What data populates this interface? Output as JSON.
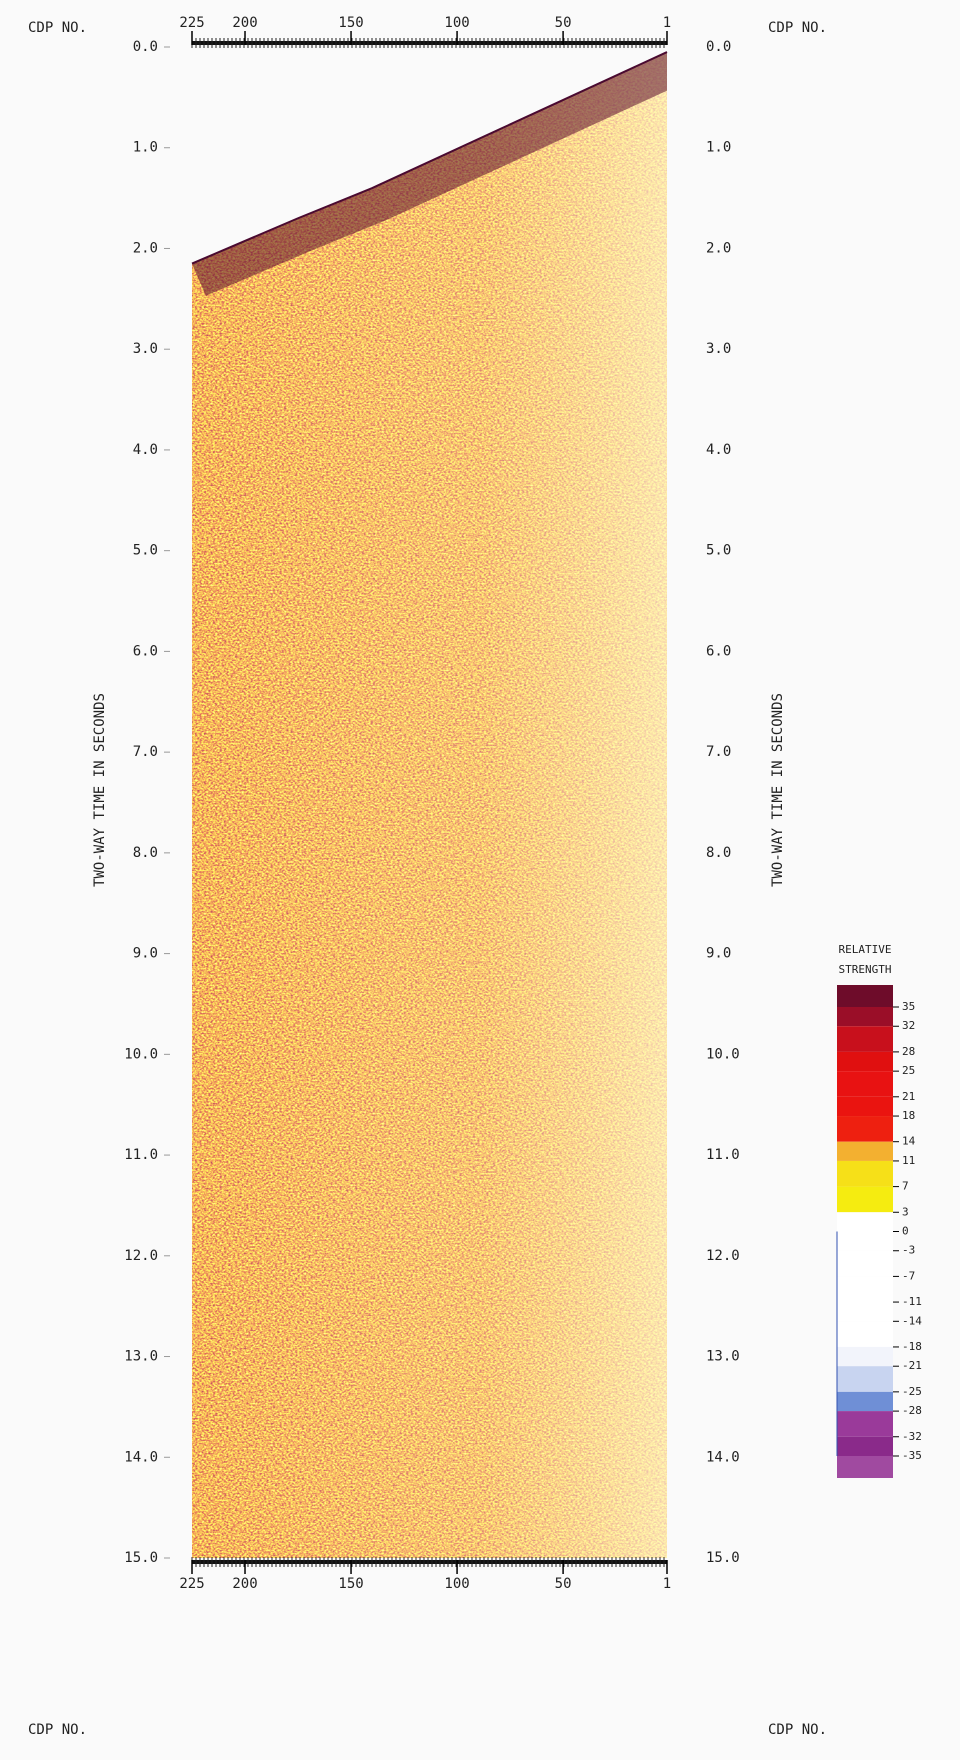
{
  "chart_data": {
    "type": "seismic-section",
    "x_label": "CDP NO.",
    "y_label": "TWO-WAY TIME IN SECONDS",
    "xlim": [
      225,
      1
    ],
    "xticks": [
      225,
      200,
      150,
      100,
      50,
      1
    ],
    "ylim": [
      0,
      15
    ],
    "yticks": [
      {
        "value": 0,
        "label": "0.0"
      },
      {
        "value": 1,
        "label": "1.0"
      },
      {
        "value": 2,
        "label": "2.0"
      },
      {
        "value": 3,
        "label": "3.0"
      },
      {
        "value": 4,
        "label": "4.0"
      },
      {
        "value": 5,
        "label": "5.0"
      },
      {
        "value": 6,
        "label": "6.0"
      },
      {
        "value": 7,
        "label": "7.0"
      },
      {
        "value": 8,
        "label": "8.0"
      },
      {
        "value": 9,
        "label": "9.0"
      },
      {
        "value": 10,
        "label": "10.0"
      },
      {
        "value": 11,
        "label": "11.0"
      },
      {
        "value": 12,
        "label": "12.0"
      },
      {
        "value": 13,
        "label": "13.0"
      },
      {
        "value": 14,
        "label": "14.0"
      },
      {
        "value": 15,
        "label": "15.0"
      }
    ],
    "data_top": {
      "cdp": [
        225,
        175,
        140,
        1
      ],
      "time": [
        2.15,
        1.7,
        1.4,
        0.05
      ]
    },
    "colorbar": {
      "title": [
        "RELATIVE",
        "STRENGTH"
      ],
      "ticks": [
        35,
        32,
        28,
        25,
        21,
        18,
        14,
        11,
        7,
        3,
        0,
        -3,
        -7,
        -11,
        -14,
        -18,
        -21,
        -25,
        -28,
        -32,
        -35
      ],
      "colors": [
        "#6e0c2a",
        "#9a0e28",
        "#c8101c",
        "#e01010",
        "#e81212",
        "#ea1410",
        "#ee2010",
        "#f3b030",
        "#f6e018",
        "#f5ec10",
        "#ffffff",
        "#ffffff",
        "#ffffff",
        "#ffffff",
        "#ffffff",
        "#ffffff",
        "#f2f4fb",
        "#c8d4f0",
        "#6f8fd6",
        "#9a3a9a",
        "#8a2a8a",
        "#a04aa0"
      ]
    }
  }
}
